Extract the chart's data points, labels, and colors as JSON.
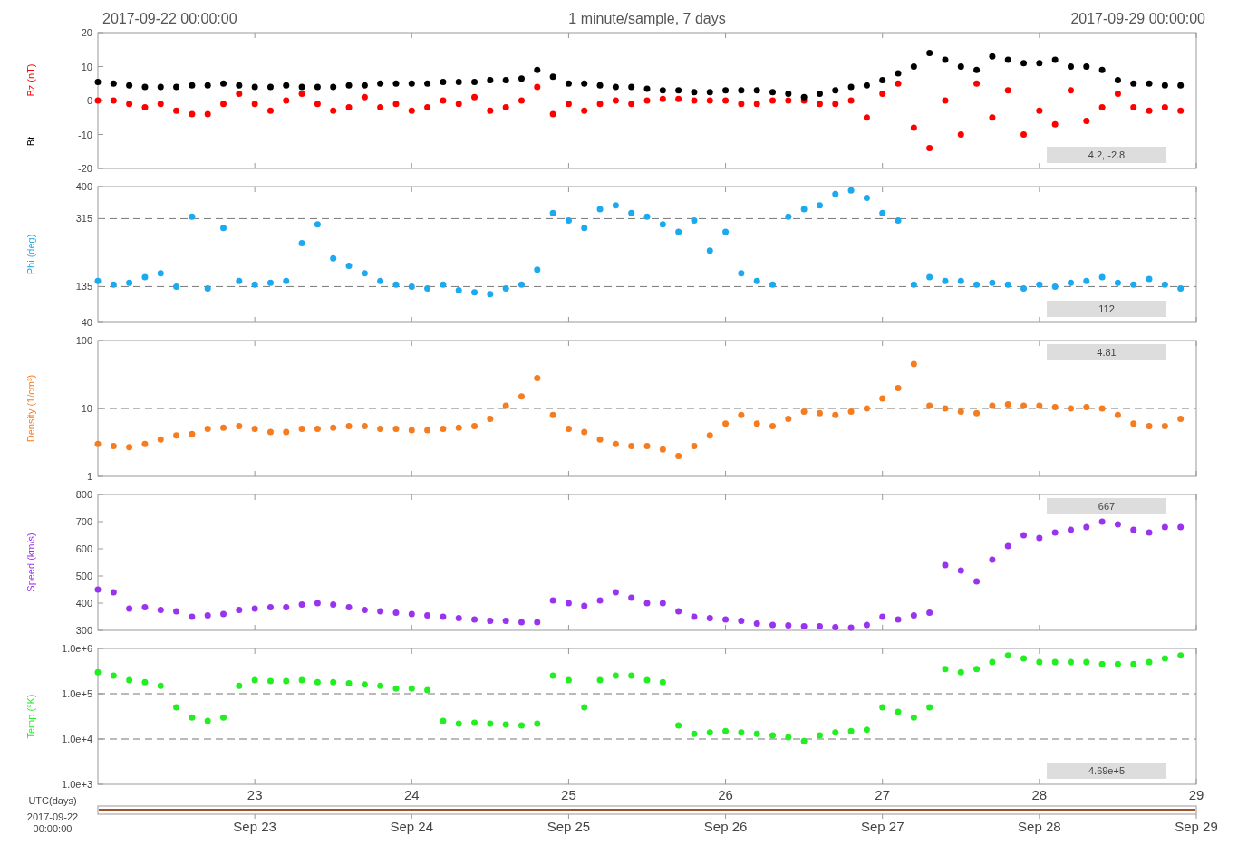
{
  "chart_data": [
    {
      "type": "scatter",
      "title": "1 minute/sample, 7 days",
      "annotations": [
        "2017-09-22 00:00:00",
        "2017-09-29 00:00:00",
        "4.2, -2.8"
      ],
      "x": [
        "2017-09-22T00:00",
        "2017-09-22T02:24",
        "2017-09-22T04:48",
        "2017-09-22T07:12",
        "2017-09-22T09:36",
        "2017-09-22T12:00",
        "2017-09-22T14:24",
        "2017-09-22T16:48",
        "2017-09-22T19:12",
        "2017-09-22T21:36",
        "2017-09-23T00:00",
        "2017-09-23T02:24",
        "2017-09-23T04:48",
        "2017-09-23T07:12",
        "2017-09-23T09:36",
        "2017-09-23T12:00",
        "2017-09-23T14:24",
        "2017-09-23T16:48",
        "2017-09-23T19:12",
        "2017-09-23T21:36",
        "2017-09-24T00:00",
        "2017-09-24T02:24",
        "2017-09-24T04:48",
        "2017-09-24T07:12",
        "2017-09-24T09:36",
        "2017-09-24T12:00",
        "2017-09-24T14:24",
        "2017-09-24T16:48",
        "2017-09-24T19:12",
        "2017-09-24T21:36",
        "2017-09-25T00:00",
        "2017-09-25T02:24",
        "2017-09-25T04:48",
        "2017-09-25T07:12",
        "2017-09-25T09:36",
        "2017-09-25T12:00",
        "2017-09-25T14:24",
        "2017-09-25T16:48",
        "2017-09-25T19:12",
        "2017-09-25T21:36",
        "2017-09-26T00:00",
        "2017-09-26T02:24",
        "2017-09-26T04:48",
        "2017-09-26T07:12",
        "2017-09-26T09:36",
        "2017-09-26T12:00",
        "2017-09-26T14:24",
        "2017-09-26T16:48",
        "2017-09-26T19:12",
        "2017-09-26T21:36",
        "2017-09-27T00:00",
        "2017-09-27T02:24",
        "2017-09-27T04:48",
        "2017-09-27T07:12",
        "2017-09-27T09:36",
        "2017-09-27T12:00",
        "2017-09-27T14:24",
        "2017-09-27T16:48",
        "2017-09-27T19:12",
        "2017-09-27T21:36",
        "2017-09-28T00:00",
        "2017-09-28T02:24",
        "2017-09-28T04:48",
        "2017-09-28T07:12",
        "2017-09-28T09:36",
        "2017-09-28T12:00",
        "2017-09-28T14:24",
        "2017-09-28T16:48",
        "2017-09-28T19:12",
        "2017-09-28T21:36"
      ],
      "xlim": [
        "2017-09-22",
        "2017-09-29"
      ],
      "xticks": [
        {
          "value": "2017-09-23",
          "label": null
        },
        {
          "value": "2017-09-24",
          "label": null
        },
        {
          "value": "2017-09-25",
          "label": null
        },
        {
          "value": "2017-09-26",
          "label": null
        },
        {
          "value": "2017-09-27",
          "label": null
        },
        {
          "value": "2017-09-28",
          "label": null
        },
        {
          "value": "2017-09-29",
          "label": null
        }
      ],
      "ylim": [
        -20,
        20
      ],
      "yticks": [
        -20,
        -10,
        0,
        10,
        20
      ],
      "tick_labels": "y",
      "marker": "circle",
      "series": [
        {
          "name": "Bz (nT)",
          "color": "#ff0000",
          "values": [
            0,
            0,
            -1,
            -2,
            -1,
            -3,
            -4,
            -4,
            -1,
            2,
            -1,
            -3,
            0,
            2,
            -1,
            -3,
            -2,
            1,
            -2,
            -1,
            -3,
            -2,
            0,
            -1,
            1,
            -3,
            -2,
            0,
            4,
            -4,
            -1,
            -3,
            -1,
            0,
            -1,
            0,
            0.5,
            0.5,
            0,
            0,
            0,
            -1,
            -1,
            0,
            0,
            0,
            -1,
            -1,
            0,
            -5,
            2,
            5,
            -8,
            -14,
            0,
            -10,
            5,
            -5,
            3,
            -10,
            -3,
            -7,
            3,
            -6,
            -2,
            2,
            -2,
            -3,
            -2,
            -3
          ]
        },
        {
          "name": "Bt",
          "color": "#000000",
          "values": [
            5.5,
            5,
            4.5,
            4,
            4,
            4,
            4.5,
            4.5,
            5,
            4.5,
            4,
            4,
            4.5,
            4,
            4,
            4,
            4.5,
            4.5,
            5,
            5,
            5,
            5,
            5.5,
            5.5,
            5.5,
            6,
            6,
            6.5,
            9,
            7,
            5,
            5,
            4.5,
            4,
            4,
            3.5,
            3,
            3,
            2.5,
            2.5,
            3,
            3,
            3,
            2.5,
            2,
            1,
            2,
            3,
            4,
            4.5,
            6,
            8,
            10,
            14,
            12,
            10,
            9,
            13,
            12,
            11,
            11,
            12,
            10,
            10,
            9,
            6,
            5,
            5,
            4.5,
            4.5
          ]
        }
      ]
    },
    {
      "type": "scatter",
      "ylabel": "Phi (deg)",
      "annotations": [
        "112"
      ],
      "x": [
        "2017-09-22T00:00",
        "2017-09-22T02:24",
        "2017-09-22T04:48",
        "2017-09-22T07:12",
        "2017-09-22T09:36",
        "2017-09-22T12:00",
        "2017-09-22T14:24",
        "2017-09-22T16:48",
        "2017-09-22T19:12",
        "2017-09-22T21:36",
        "2017-09-23T00:00",
        "2017-09-23T02:24",
        "2017-09-23T04:48",
        "2017-09-23T07:12",
        "2017-09-23T09:36",
        "2017-09-23T12:00",
        "2017-09-23T14:24",
        "2017-09-23T16:48",
        "2017-09-23T19:12",
        "2017-09-23T21:36",
        "2017-09-24T00:00",
        "2017-09-24T02:24",
        "2017-09-24T04:48",
        "2017-09-24T07:12",
        "2017-09-24T09:36",
        "2017-09-24T12:00",
        "2017-09-24T14:24",
        "2017-09-24T16:48",
        "2017-09-24T19:12",
        "2017-09-24T21:36",
        "2017-09-25T00:00",
        "2017-09-25T02:24",
        "2017-09-25T04:48",
        "2017-09-25T07:12",
        "2017-09-25T09:36",
        "2017-09-25T12:00",
        "2017-09-25T14:24",
        "2017-09-25T16:48",
        "2017-09-25T19:12",
        "2017-09-25T21:36",
        "2017-09-26T00:00",
        "2017-09-26T02:24",
        "2017-09-26T04:48",
        "2017-09-26T07:12",
        "2017-09-26T09:36",
        "2017-09-26T12:00",
        "2017-09-26T14:24",
        "2017-09-26T16:48",
        "2017-09-26T19:12",
        "2017-09-26T21:36",
        "2017-09-27T00:00",
        "2017-09-27T02:24",
        "2017-09-27T04:48",
        "2017-09-27T07:12",
        "2017-09-27T09:36",
        "2017-09-27T12:00",
        "2017-09-27T14:24",
        "2017-09-27T16:48",
        "2017-09-27T19:12",
        "2017-09-27T21:36",
        "2017-09-28T00:00",
        "2017-09-28T02:24",
        "2017-09-28T04:48",
        "2017-09-28T07:12",
        "2017-09-28T09:36",
        "2017-09-28T12:00",
        "2017-09-28T14:24",
        "2017-09-28T16:48",
        "2017-09-28T19:12",
        "2017-09-28T21:36"
      ],
      "xlim": [
        "2017-09-22",
        "2017-09-29"
      ],
      "xticks": [
        {
          "value": "2017-09-23",
          "label": null
        },
        {
          "value": "2017-09-24",
          "label": null
        },
        {
          "value": "2017-09-25",
          "label": null
        },
        {
          "value": "2017-09-26",
          "label": null
        },
        {
          "value": "2017-09-27",
          "label": null
        },
        {
          "value": "2017-09-28",
          "label": null
        },
        {
          "value": "2017-09-29",
          "label": null
        }
      ],
      "ylim": [
        40,
        400
      ],
      "yticks": [
        40,
        135,
        315,
        400
      ],
      "tick_labels": "y",
      "marker": "circle",
      "ref_lines": [
        {
          "axis": "y",
          "value": 135,
          "line_style": "dashed"
        },
        {
          "axis": "y",
          "value": 315,
          "line_style": "dashed"
        }
      ],
      "series": [
        {
          "color": "#1ba9ef",
          "values": [
            150,
            140,
            145,
            160,
            170,
            135,
            320,
            130,
            290,
            150,
            140,
            145,
            150,
            250,
            300,
            210,
            190,
            170,
            150,
            140,
            135,
            130,
            140,
            125,
            120,
            115,
            130,
            140,
            180,
            330,
            310,
            290,
            340,
            350,
            330,
            320,
            300,
            280,
            310,
            230,
            280,
            170,
            150,
            140,
            320,
            340,
            350,
            380,
            390,
            370,
            330,
            310,
            140,
            160,
            150,
            150,
            140,
            145,
            140,
            130,
            140,
            135,
            145,
            150,
            160,
            145,
            140,
            155,
            140,
            130
          ]
        }
      ]
    },
    {
      "type": "scatter",
      "ylabel": "Density (1/cm³)",
      "annotations": [
        "4.81"
      ],
      "x": [
        "2017-09-22T00:00",
        "2017-09-22T02:24",
        "2017-09-22T04:48",
        "2017-09-22T07:12",
        "2017-09-22T09:36",
        "2017-09-22T12:00",
        "2017-09-22T14:24",
        "2017-09-22T16:48",
        "2017-09-22T19:12",
        "2017-09-22T21:36",
        "2017-09-23T00:00",
        "2017-09-23T02:24",
        "2017-09-23T04:48",
        "2017-09-23T07:12",
        "2017-09-23T09:36",
        "2017-09-23T12:00",
        "2017-09-23T14:24",
        "2017-09-23T16:48",
        "2017-09-23T19:12",
        "2017-09-23T21:36",
        "2017-09-24T00:00",
        "2017-09-24T02:24",
        "2017-09-24T04:48",
        "2017-09-24T07:12",
        "2017-09-24T09:36",
        "2017-09-24T12:00",
        "2017-09-24T14:24",
        "2017-09-24T16:48",
        "2017-09-24T19:12",
        "2017-09-24T21:36",
        "2017-09-25T00:00",
        "2017-09-25T02:24",
        "2017-09-25T04:48",
        "2017-09-25T07:12",
        "2017-09-25T09:36",
        "2017-09-25T12:00",
        "2017-09-25T14:24",
        "2017-09-25T16:48",
        "2017-09-25T19:12",
        "2017-09-25T21:36",
        "2017-09-26T00:00",
        "2017-09-26T02:24",
        "2017-09-26T04:48",
        "2017-09-26T07:12",
        "2017-09-26T09:36",
        "2017-09-26T12:00",
        "2017-09-26T14:24",
        "2017-09-26T16:48",
        "2017-09-26T19:12",
        "2017-09-26T21:36",
        "2017-09-27T00:00",
        "2017-09-27T02:24",
        "2017-09-27T04:48",
        "2017-09-27T07:12",
        "2017-09-27T09:36",
        "2017-09-27T12:00",
        "2017-09-27T14:24",
        "2017-09-27T16:48",
        "2017-09-27T19:12",
        "2017-09-27T21:36",
        "2017-09-28T00:00",
        "2017-09-28T02:24",
        "2017-09-28T04:48",
        "2017-09-28T07:12",
        "2017-09-28T09:36",
        "2017-09-28T12:00",
        "2017-09-28T14:24",
        "2017-09-28T16:48",
        "2017-09-28T19:12",
        "2017-09-28T21:36"
      ],
      "xlim": [
        "2017-09-22",
        "2017-09-29"
      ],
      "xticks": [
        {
          "value": "2017-09-23",
          "label": null
        },
        {
          "value": "2017-09-24",
          "label": null
        },
        {
          "value": "2017-09-25",
          "label": null
        },
        {
          "value": "2017-09-26",
          "label": null
        },
        {
          "value": "2017-09-27",
          "label": null
        },
        {
          "value": "2017-09-28",
          "label": null
        },
        {
          "value": "2017-09-29",
          "label": null
        }
      ],
      "ylim": [
        1,
        100
      ],
      "yticks": [
        1,
        10,
        100
      ],
      "log": "y",
      "tick_labels": "y",
      "marker": "circle",
      "ref_lines": [
        {
          "axis": "y",
          "value": 10,
          "line_style": "dashed"
        }
      ],
      "series": [
        {
          "color": "#f57c1f",
          "values": [
            3,
            2.8,
            2.7,
            3,
            3.5,
            4,
            4.2,
            5,
            5.2,
            5.5,
            5,
            4.5,
            4.5,
            5,
            5,
            5.2,
            5.5,
            5.5,
            5,
            5,
            4.8,
            4.8,
            5,
            5.2,
            5.5,
            7,
            11,
            15,
            28,
            8,
            5,
            4.5,
            3.5,
            3,
            2.8,
            2.8,
            2.5,
            2,
            2.8,
            4,
            6,
            8,
            6,
            5.5,
            7,
            9,
            8.5,
            8,
            9,
            10,
            14,
            20,
            45,
            11,
            10,
            9,
            8.5,
            11,
            11.5,
            11,
            11,
            10.5,
            10,
            10.5,
            10,
            8,
            6,
            5.5,
            5.5,
            7
          ]
        }
      ]
    },
    {
      "type": "scatter",
      "ylabel": "Speed (km/s)",
      "annotations": [
        "667"
      ],
      "x": [
        "2017-09-22T00:00",
        "2017-09-22T02:24",
        "2017-09-22T04:48",
        "2017-09-22T07:12",
        "2017-09-22T09:36",
        "2017-09-22T12:00",
        "2017-09-22T14:24",
        "2017-09-22T16:48",
        "2017-09-22T19:12",
        "2017-09-22T21:36",
        "2017-09-23T00:00",
        "2017-09-23T02:24",
        "2017-09-23T04:48",
        "2017-09-23T07:12",
        "2017-09-23T09:36",
        "2017-09-23T12:00",
        "2017-09-23T14:24",
        "2017-09-23T16:48",
        "2017-09-23T19:12",
        "2017-09-23T21:36",
        "2017-09-24T00:00",
        "2017-09-24T02:24",
        "2017-09-24T04:48",
        "2017-09-24T07:12",
        "2017-09-24T09:36",
        "2017-09-24T12:00",
        "2017-09-24T14:24",
        "2017-09-24T16:48",
        "2017-09-24T19:12",
        "2017-09-24T21:36",
        "2017-09-25T00:00",
        "2017-09-25T02:24",
        "2017-09-25T04:48",
        "2017-09-25T07:12",
        "2017-09-25T09:36",
        "2017-09-25T12:00",
        "2017-09-25T14:24",
        "2017-09-25T16:48",
        "2017-09-25T19:12",
        "2017-09-25T21:36",
        "2017-09-26T00:00",
        "2017-09-26T02:24",
        "2017-09-26T04:48",
        "2017-09-26T07:12",
        "2017-09-26T09:36",
        "2017-09-26T12:00",
        "2017-09-26T14:24",
        "2017-09-26T16:48",
        "2017-09-26T19:12",
        "2017-09-26T21:36",
        "2017-09-27T00:00",
        "2017-09-27T02:24",
        "2017-09-27T04:48",
        "2017-09-27T07:12",
        "2017-09-27T09:36",
        "2017-09-27T12:00",
        "2017-09-27T14:24",
        "2017-09-27T16:48",
        "2017-09-27T19:12",
        "2017-09-27T21:36",
        "2017-09-28T00:00",
        "2017-09-28T02:24",
        "2017-09-28T04:48",
        "2017-09-28T07:12",
        "2017-09-28T09:36",
        "2017-09-28T12:00",
        "2017-09-28T14:24",
        "2017-09-28T16:48",
        "2017-09-28T19:12",
        "2017-09-28T21:36"
      ],
      "xlim": [
        "2017-09-22",
        "2017-09-29"
      ],
      "xticks": [
        {
          "value": "2017-09-23",
          "label": null
        },
        {
          "value": "2017-09-24",
          "label": null
        },
        {
          "value": "2017-09-25",
          "label": null
        },
        {
          "value": "2017-09-26",
          "label": null
        },
        {
          "value": "2017-09-27",
          "label": null
        },
        {
          "value": "2017-09-28",
          "label": null
        },
        {
          "value": "2017-09-29",
          "label": null
        }
      ],
      "ylim": [
        300,
        800
      ],
      "yticks": [
        300,
        400,
        500,
        600,
        700,
        800
      ],
      "tick_labels": "y",
      "marker": "circle",
      "series": [
        {
          "color": "#9933ee",
          "values": [
            450,
            440,
            380,
            385,
            375,
            370,
            350,
            355,
            360,
            375,
            380,
            385,
            385,
            395,
            400,
            395,
            385,
            375,
            370,
            365,
            360,
            355,
            350,
            345,
            340,
            335,
            335,
            330,
            330,
            410,
            400,
            390,
            410,
            440,
            420,
            400,
            400,
            370,
            350,
            345,
            340,
            335,
            325,
            320,
            318,
            315,
            315,
            312,
            310,
            320,
            350,
            340,
            355,
            365,
            540,
            520,
            480,
            560,
            610,
            650,
            640,
            660,
            670,
            680,
            700,
            690,
            670,
            660,
            680,
            680
          ]
        }
      ]
    },
    {
      "type": "scatter",
      "ylabel": "Temp (°K)",
      "xlabel": "UTC(days)",
      "annotations": [
        "2017-09-22 00:00:00",
        "4.69e+5"
      ],
      "x": [
        "2017-09-22T00:00",
        "2017-09-22T02:24",
        "2017-09-22T04:48",
        "2017-09-22T07:12",
        "2017-09-22T09:36",
        "2017-09-22T12:00",
        "2017-09-22T14:24",
        "2017-09-22T16:48",
        "2017-09-22T19:12",
        "2017-09-22T21:36",
        "2017-09-23T00:00",
        "2017-09-23T02:24",
        "2017-09-23T04:48",
        "2017-09-23T07:12",
        "2017-09-23T09:36",
        "2017-09-23T12:00",
        "2017-09-23T14:24",
        "2017-09-23T16:48",
        "2017-09-23T19:12",
        "2017-09-23T21:36",
        "2017-09-24T00:00",
        "2017-09-24T02:24",
        "2017-09-24T04:48",
        "2017-09-24T07:12",
        "2017-09-24T09:36",
        "2017-09-24T12:00",
        "2017-09-24T14:24",
        "2017-09-24T16:48",
        "2017-09-24T19:12",
        "2017-09-24T21:36",
        "2017-09-25T00:00",
        "2017-09-25T02:24",
        "2017-09-25T04:48",
        "2017-09-25T07:12",
        "2017-09-25T09:36",
        "2017-09-25T12:00",
        "2017-09-25T14:24",
        "2017-09-25T16:48",
        "2017-09-25T19:12",
        "2017-09-25T21:36",
        "2017-09-26T00:00",
        "2017-09-26T02:24",
        "2017-09-26T04:48",
        "2017-09-26T07:12",
        "2017-09-26T09:36",
        "2017-09-26T12:00",
        "2017-09-26T14:24",
        "2017-09-26T16:48",
        "2017-09-26T19:12",
        "2017-09-26T21:36",
        "2017-09-27T00:00",
        "2017-09-27T02:24",
        "2017-09-27T04:48",
        "2017-09-27T07:12",
        "2017-09-27T09:36",
        "2017-09-27T12:00",
        "2017-09-27T14:24",
        "2017-09-27T16:48",
        "2017-09-27T19:12",
        "2017-09-27T21:36",
        "2017-09-28T00:00",
        "2017-09-28T02:24",
        "2017-09-28T04:48",
        "2017-09-28T07:12",
        "2017-09-28T09:36",
        "2017-09-28T12:00",
        "2017-09-28T14:24",
        "2017-09-28T16:48",
        "2017-09-28T19:12",
        "2017-09-28T21:36"
      ],
      "xlim": [
        "2017-09-22",
        "2017-09-29"
      ],
      "xticks": [
        {
          "value": "2017-09-23",
          "label": "23"
        },
        {
          "value": "2017-09-24",
          "label": "24"
        },
        {
          "value": "2017-09-25",
          "label": "25"
        },
        {
          "value": "2017-09-26",
          "label": "26"
        },
        {
          "value": "2017-09-27",
          "label": "27"
        },
        {
          "value": "2017-09-28",
          "label": "28"
        },
        {
          "value": "2017-09-29",
          "label": "29"
        }
      ],
      "x2lim": [
        "2017-09-22",
        "2017-09-29"
      ],
      "x2ticks": [
        {
          "value": "2017-09-23",
          "label": "Sep 23"
        },
        {
          "value": "2017-09-24",
          "label": "Sep 24"
        },
        {
          "value": "2017-09-25",
          "label": "Sep 25"
        },
        {
          "value": "2017-09-26",
          "label": "Sep 26"
        },
        {
          "value": "2017-09-27",
          "label": "Sep 27"
        },
        {
          "value": "2017-09-28",
          "label": "Sep 28"
        },
        {
          "value": "2017-09-29",
          "label": "Sep 29"
        }
      ],
      "ylim": [
        1000,
        1000000
      ],
      "yticks": [
        {
          "value": 1000,
          "label": "1.0e+3"
        },
        {
          "value": 10000,
          "label": "1.0e+4"
        },
        {
          "value": 100000,
          "label": "1.0e+5"
        },
        {
          "value": 1000000,
          "label": "1.0e+6"
        }
      ],
      "log": "y",
      "marker": "circle",
      "ref_lines": [
        {
          "axis": "y",
          "value": 10000,
          "line_style": "dashed"
        },
        {
          "axis": "y",
          "value": 100000,
          "line_style": "dashed"
        }
      ],
      "series": [
        {
          "color": "#22ee22",
          "values": [
            300000,
            250000,
            200000,
            180000,
            150000,
            50000,
            30000,
            25000,
            30000,
            150000,
            200000,
            190000,
            190000,
            200000,
            180000,
            180000,
            170000,
            160000,
            150000,
            130000,
            130000,
            120000,
            25000,
            22000,
            23000,
            22000,
            21000,
            20000,
            22000,
            250000,
            200000,
            50000,
            200000,
            250000,
            250000,
            200000,
            180000,
            20000,
            13000,
            14000,
            15000,
            14000,
            13000,
            12000,
            11000,
            9000,
            12000,
            14000,
            15000,
            16000,
            50000,
            40000,
            30000,
            50000,
            350000,
            300000,
            350000,
            500000,
            700000,
            600000,
            500000,
            500000,
            500000,
            500000,
            450000,
            450000,
            450000,
            500000,
            600000,
            700000
          ]
        }
      ]
    }
  ]
}
